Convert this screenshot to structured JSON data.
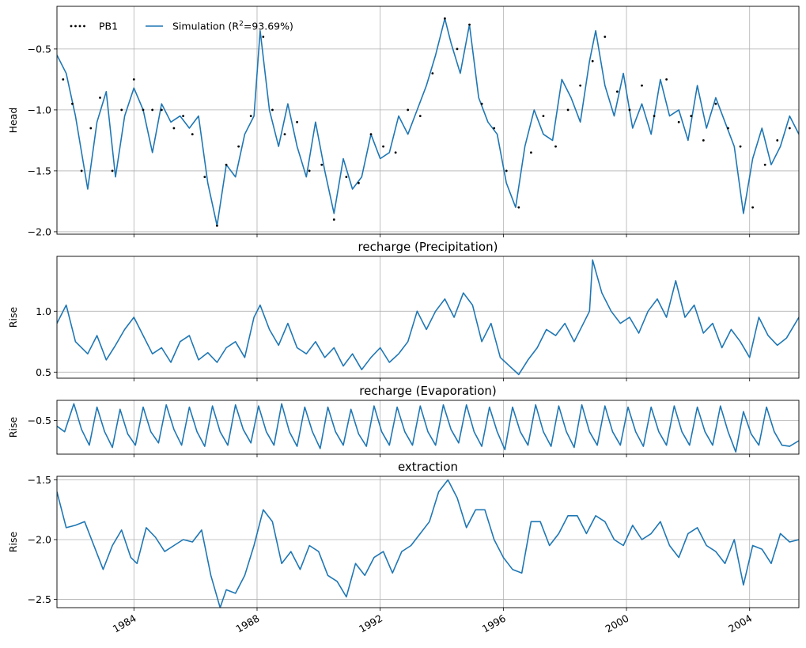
{
  "colors": {
    "simulation": "#1f77b4",
    "observed": "#000000",
    "grid": "#b0b0b0",
    "frame": "#000000"
  },
  "chart_data": [
    {
      "type": "line",
      "title": "",
      "ylabel": "Head",
      "ylim": [
        -2.02,
        -0.15
      ],
      "xlim": [
        1981.5,
        2005.6
      ],
      "yticks": [
        -0.5,
        -1.0,
        -1.5,
        -2.0
      ],
      "ytick_labels": [
        "−0.5",
        "−1.0",
        "−1.5",
        "−2.0"
      ],
      "legend": {
        "placement": "upper-left",
        "observed_label": "PB1",
        "sim_label_prefix": "Simulation (R",
        "sim_label_suffix": "=93.69%)"
      },
      "series": [
        {
          "name": "Simulation",
          "style": "line",
          "x": [
            1981.5,
            1981.8,
            1982.1,
            1982.5,
            1982.8,
            1983.1,
            1983.4,
            1983.7,
            1984.0,
            1984.3,
            1984.6,
            1984.9,
            1985.2,
            1985.5,
            1985.8,
            1986.1,
            1986.4,
            1986.7,
            1987.0,
            1987.3,
            1987.6,
            1987.9,
            1988.1,
            1988.4,
            1988.7,
            1989.0,
            1989.3,
            1989.6,
            1989.9,
            1990.2,
            1990.5,
            1990.8,
            1991.1,
            1991.4,
            1991.7,
            1992.0,
            1992.3,
            1992.6,
            1992.9,
            1993.2,
            1993.5,
            1993.8,
            1994.1,
            1994.3,
            1994.6,
            1994.9,
            1995.2,
            1995.5,
            1995.8,
            1996.1,
            1996.4,
            1996.7,
            1997.0,
            1997.3,
            1997.6,
            1997.9,
            1998.2,
            1998.5,
            1998.8,
            1999.0,
            1999.3,
            1999.6,
            1999.9,
            2000.2,
            2000.5,
            2000.8,
            2001.1,
            2001.4,
            2001.7,
            2002.0,
            2002.3,
            2002.6,
            2002.9,
            2003.2,
            2003.5,
            2003.8,
            2004.1,
            2004.4,
            2004.7,
            2005.0,
            2005.3,
            2005.6
          ],
          "y": [
            -0.55,
            -0.7,
            -1.05,
            -1.65,
            -1.1,
            -0.85,
            -1.55,
            -1.05,
            -0.82,
            -1.0,
            -1.35,
            -0.95,
            -1.1,
            -1.05,
            -1.15,
            -1.05,
            -1.6,
            -1.95,
            -1.45,
            -1.55,
            -1.2,
            -1.05,
            -0.35,
            -1.0,
            -1.3,
            -0.95,
            -1.3,
            -1.55,
            -1.1,
            -1.5,
            -1.85,
            -1.4,
            -1.65,
            -1.55,
            -1.2,
            -1.4,
            -1.35,
            -1.05,
            -1.2,
            -1.0,
            -0.8,
            -0.55,
            -0.25,
            -0.45,
            -0.7,
            -0.3,
            -0.9,
            -1.1,
            -1.2,
            -1.6,
            -1.8,
            -1.3,
            -1.0,
            -1.2,
            -1.25,
            -0.75,
            -0.9,
            -1.1,
            -0.6,
            -0.35,
            -0.8,
            -1.05,
            -0.7,
            -1.15,
            -0.95,
            -1.2,
            -0.75,
            -1.05,
            -1.0,
            -1.25,
            -0.8,
            -1.15,
            -0.9,
            -1.1,
            -1.3,
            -1.85,
            -1.4,
            -1.15,
            -1.45,
            -1.3,
            -1.05,
            -1.2
          ]
        },
        {
          "name": "PB1",
          "style": "dots",
          "x": [
            1981.7,
            1982.0,
            1982.3,
            1982.6,
            1982.9,
            1983.3,
            1983.6,
            1984.0,
            1984.3,
            1984.6,
            1984.9,
            1985.3,
            1985.6,
            1985.9,
            1986.3,
            1986.7,
            1987.0,
            1987.4,
            1987.8,
            1988.2,
            1988.5,
            1988.9,
            1989.3,
            1989.7,
            1990.1,
            1990.5,
            1990.9,
            1991.3,
            1991.7,
            1992.1,
            1992.5,
            1992.9,
            1993.3,
            1993.7,
            1994.1,
            1994.5,
            1994.9,
            1995.3,
            1995.7,
            1996.1,
            1996.5,
            1996.9,
            1997.3,
            1997.7,
            1998.1,
            1998.5,
            1998.9,
            1999.3,
            1999.7,
            2000.1,
            2000.5,
            2000.9,
            2001.3,
            2001.7,
            2002.1,
            2002.5,
            2002.9,
            2003.3,
            2003.7,
            2004.1,
            2004.5,
            2004.9,
            2005.3
          ],
          "y": [
            -0.75,
            -0.95,
            -1.5,
            -1.15,
            -0.9,
            -1.5,
            -1.0,
            -0.75,
            -1.0,
            -1.0,
            -1.0,
            -1.15,
            -1.05,
            -1.2,
            -1.55,
            -1.95,
            -1.45,
            -1.3,
            -1.05,
            -0.4,
            -1.0,
            -1.2,
            -1.1,
            -1.5,
            -1.45,
            -1.9,
            -1.55,
            -1.6,
            -1.2,
            -1.3,
            -1.35,
            -1.0,
            -1.05,
            -0.7,
            -0.25,
            -0.5,
            -0.3,
            -0.95,
            -1.15,
            -1.5,
            -1.8,
            -1.35,
            -1.05,
            -1.3,
            -1.0,
            -0.8,
            -0.6,
            -0.4,
            -0.85,
            -1.0,
            -0.8,
            -1.05,
            -0.75,
            -1.1,
            -1.05,
            -1.25,
            -0.95,
            -1.15,
            -1.3,
            -1.8,
            -1.45,
            -1.25,
            -1.15
          ]
        }
      ]
    },
    {
      "type": "line",
      "title": "recharge (Precipitation)",
      "ylabel": "Rise",
      "ylim": [
        0.45,
        1.45
      ],
      "xlim": [
        1981.5,
        2005.6
      ],
      "yticks": [
        1.0,
        0.5
      ],
      "ytick_labels": [
        "1.0",
        "0.5"
      ],
      "series": [
        {
          "name": "",
          "x": [
            1981.5,
            1981.8,
            1982.1,
            1982.5,
            1982.8,
            1983.1,
            1983.4,
            1983.7,
            1984.0,
            1984.3,
            1984.6,
            1984.9,
            1985.2,
            1985.5,
            1985.8,
            1986.1,
            1986.4,
            1986.7,
            1987.0,
            1987.3,
            1987.6,
            1987.9,
            1988.1,
            1988.4,
            1988.7,
            1989.0,
            1989.3,
            1989.6,
            1989.9,
            1990.2,
            1990.5,
            1990.8,
            1991.1,
            1991.4,
            1991.7,
            1992.0,
            1992.3,
            1992.6,
            1992.9,
            1993.2,
            1993.5,
            1993.8,
            1994.1,
            1994.4,
            1994.7,
            1995.0,
            1995.3,
            1995.6,
            1995.9,
            1996.2,
            1996.5,
            1996.8,
            1997.1,
            1997.4,
            1997.7,
            1998.0,
            1998.3,
            1998.6,
            1998.8,
            1998.9,
            1999.2,
            1999.5,
            1999.8,
            2000.1,
            2000.4,
            2000.7,
            2001.0,
            2001.3,
            2001.6,
            2001.9,
            2002.2,
            2002.5,
            2002.8,
            2003.1,
            2003.4,
            2003.7,
            2004.0,
            2004.3,
            2004.6,
            2004.9,
            2005.2,
            2005.6
          ],
          "y": [
            0.9,
            1.05,
            0.75,
            0.65,
            0.8,
            0.6,
            0.72,
            0.85,
            0.95,
            0.8,
            0.65,
            0.7,
            0.58,
            0.75,
            0.8,
            0.6,
            0.66,
            0.58,
            0.7,
            0.75,
            0.62,
            0.95,
            1.05,
            0.85,
            0.72,
            0.9,
            0.7,
            0.65,
            0.75,
            0.62,
            0.7,
            0.55,
            0.65,
            0.52,
            0.62,
            0.7,
            0.58,
            0.65,
            0.75,
            1.0,
            0.85,
            1.0,
            1.1,
            0.95,
            1.15,
            1.05,
            0.75,
            0.9,
            0.62,
            0.55,
            0.48,
            0.6,
            0.7,
            0.85,
            0.8,
            0.9,
            0.75,
            0.9,
            1.0,
            1.42,
            1.15,
            1.0,
            0.9,
            0.95,
            0.82,
            1.0,
            1.1,
            0.95,
            1.25,
            0.95,
            1.05,
            0.82,
            0.9,
            0.7,
            0.85,
            0.75,
            0.62,
            0.95,
            0.8,
            0.72,
            0.78,
            0.95
          ]
        }
      ]
    },
    {
      "type": "line",
      "title": "recharge (Evaporation)",
      "ylabel": "Rise",
      "ylim": [
        -0.8,
        -0.32
      ],
      "xlim": [
        1981.5,
        2005.6
      ],
      "yticks": [
        -0.5
      ],
      "ytick_labels": [
        "−0.5"
      ],
      "series": [
        {
          "name": "",
          "x": [
            1981.5,
            1981.75,
            1982.05,
            1982.3,
            1982.55,
            1982.8,
            1983.05,
            1983.3,
            1983.55,
            1983.8,
            1984.05,
            1984.3,
            1984.55,
            1984.8,
            1985.05,
            1985.3,
            1985.55,
            1985.8,
            1986.05,
            1986.3,
            1986.55,
            1986.8,
            1987.05,
            1987.3,
            1987.55,
            1987.8,
            1988.05,
            1988.3,
            1988.55,
            1988.8,
            1989.05,
            1989.3,
            1989.55,
            1989.8,
            1990.05,
            1990.3,
            1990.55,
            1990.8,
            1991.05,
            1991.3,
            1991.55,
            1991.8,
            1992.05,
            1992.3,
            1992.55,
            1992.8,
            1993.05,
            1993.3,
            1993.55,
            1993.8,
            1994.05,
            1994.3,
            1994.55,
            1994.8,
            1995.05,
            1995.3,
            1995.55,
            1995.8,
            1996.05,
            1996.3,
            1996.55,
            1996.8,
            1997.05,
            1997.3,
            1997.55,
            1997.8,
            1998.05,
            1998.3,
            1998.55,
            1998.8,
            1999.05,
            1999.3,
            1999.55,
            1999.8,
            2000.05,
            2000.3,
            2000.55,
            2000.8,
            2001.05,
            2001.3,
            2001.55,
            2001.8,
            2002.05,
            2002.3,
            2002.55,
            2002.8,
            2003.05,
            2003.3,
            2003.55,
            2003.8,
            2004.05,
            2004.3,
            2004.55,
            2004.8,
            2005.05,
            2005.3,
            2005.6
          ],
          "y": [
            -0.55,
            -0.6,
            -0.35,
            -0.58,
            -0.72,
            -0.38,
            -0.6,
            -0.74,
            -0.4,
            -0.62,
            -0.72,
            -0.38,
            -0.6,
            -0.7,
            -0.36,
            -0.58,
            -0.72,
            -0.38,
            -0.6,
            -0.73,
            -0.37,
            -0.6,
            -0.72,
            -0.36,
            -0.58,
            -0.7,
            -0.37,
            -0.6,
            -0.72,
            -0.35,
            -0.6,
            -0.73,
            -0.38,
            -0.6,
            -0.75,
            -0.38,
            -0.6,
            -0.72,
            -0.4,
            -0.62,
            -0.73,
            -0.37,
            -0.6,
            -0.72,
            -0.38,
            -0.6,
            -0.72,
            -0.37,
            -0.6,
            -0.72,
            -0.36,
            -0.58,
            -0.7,
            -0.36,
            -0.6,
            -0.73,
            -0.38,
            -0.6,
            -0.76,
            -0.38,
            -0.6,
            -0.72,
            -0.36,
            -0.6,
            -0.73,
            -0.37,
            -0.6,
            -0.74,
            -0.36,
            -0.6,
            -0.72,
            -0.37,
            -0.6,
            -0.72,
            -0.38,
            -0.6,
            -0.73,
            -0.38,
            -0.6,
            -0.72,
            -0.37,
            -0.6,
            -0.72,
            -0.38,
            -0.6,
            -0.72,
            -0.37,
            -0.6,
            -0.78,
            -0.42,
            -0.62,
            -0.72,
            -0.38,
            -0.6,
            -0.72,
            -0.73,
            -0.68
          ]
        }
      ]
    },
    {
      "type": "line",
      "title": "extraction",
      "ylabel": "Rise",
      "ylim": [
        -2.57,
        -1.47
      ],
      "xlim": [
        1981.5,
        2005.6
      ],
      "yticks": [
        -1.5,
        -2.0,
        -2.5
      ],
      "ytick_labels": [
        "−1.5",
        "−2.0",
        "−2.5"
      ],
      "xticks": [
        1984,
        1988,
        1992,
        1996,
        2000,
        2004
      ],
      "xtick_labels": [
        "1984",
        "1988",
        "1992",
        "1996",
        "2000",
        "2004"
      ],
      "series": [
        {
          "name": "",
          "x": [
            1981.5,
            1981.8,
            1982.1,
            1982.4,
            1982.7,
            1983.0,
            1983.3,
            1983.6,
            1983.9,
            1984.1,
            1984.4,
            1984.7,
            1985.0,
            1985.3,
            1985.6,
            1985.9,
            1986.2,
            1986.5,
            1986.8,
            1987.0,
            1987.3,
            1987.6,
            1987.9,
            1988.2,
            1988.5,
            1988.8,
            1989.1,
            1989.4,
            1989.7,
            1990.0,
            1990.3,
            1990.6,
            1990.9,
            1991.2,
            1991.5,
            1991.8,
            1992.1,
            1992.4,
            1992.7,
            1993.0,
            1993.3,
            1993.6,
            1993.9,
            1994.2,
            1994.5,
            1994.8,
            1995.1,
            1995.4,
            1995.7,
            1996.0,
            1996.3,
            1996.6,
            1996.9,
            1997.2,
            1997.5,
            1997.8,
            1998.1,
            1998.4,
            1998.7,
            1999.0,
            1999.3,
            1999.6,
            1999.9,
            2000.2,
            2000.5,
            2000.8,
            2001.1,
            2001.4,
            2001.7,
            2002.0,
            2002.3,
            2002.6,
            2002.9,
            2003.2,
            2003.5,
            2003.8,
            2004.1,
            2004.4,
            2004.7,
            2005.0,
            2005.3,
            2005.6
          ],
          "y": [
            -1.6,
            -1.9,
            -1.88,
            -1.85,
            -2.05,
            -2.25,
            -2.05,
            -1.92,
            -2.15,
            -2.2,
            -1.9,
            -1.98,
            -2.1,
            -2.05,
            -2.0,
            -2.02,
            -1.92,
            -2.3,
            -2.57,
            -2.42,
            -2.45,
            -2.3,
            -2.05,
            -1.75,
            -1.85,
            -2.2,
            -2.1,
            -2.25,
            -2.05,
            -2.1,
            -2.3,
            -2.35,
            -2.48,
            -2.2,
            -2.3,
            -2.15,
            -2.1,
            -2.28,
            -2.1,
            -2.05,
            -1.95,
            -1.85,
            -1.6,
            -1.5,
            -1.65,
            -1.9,
            -1.75,
            -1.75,
            -2.0,
            -2.15,
            -2.25,
            -2.28,
            -1.85,
            -1.85,
            -2.05,
            -1.95,
            -1.8,
            -1.8,
            -1.95,
            -1.8,
            -1.85,
            -2.0,
            -2.05,
            -1.88,
            -2.0,
            -1.95,
            -1.85,
            -2.05,
            -2.15,
            -1.95,
            -1.9,
            -2.05,
            -2.1,
            -2.2,
            -2.0,
            -2.38,
            -2.05,
            -2.08,
            -2.2,
            -1.95,
            -2.02,
            -2.0
          ]
        }
      ]
    }
  ]
}
